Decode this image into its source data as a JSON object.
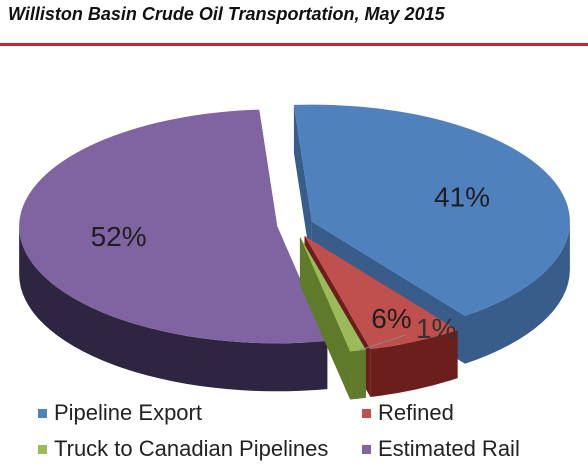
{
  "header": {
    "title": "Williston Basin Crude Oil Transportation, May 2015",
    "rule_color": "#c9252c"
  },
  "chart_data": {
    "type": "pie",
    "style": "3d-exploded",
    "title": "Williston Basin Crude Oil Transportation, May 2015",
    "slices": [
      {
        "label": "Pipeline Export",
        "value": 41,
        "display": "41%",
        "color": "#4f81bd",
        "side_color": "#385d8a"
      },
      {
        "label": "Refined",
        "value": 6,
        "display": "6%",
        "color": "#c0504d",
        "side_color": "#6b1e1c"
      },
      {
        "label": "Truck to Canadian Pipelines",
        "value": 1,
        "display": "1%",
        "color": "#9bbb59",
        "side_color": "#5f7a2a"
      },
      {
        "label": "Estimated Rail",
        "value": 52,
        "display": "52%",
        "color": "#8064a2",
        "side_color": "#2e2540"
      }
    ],
    "legend_position": "bottom"
  }
}
